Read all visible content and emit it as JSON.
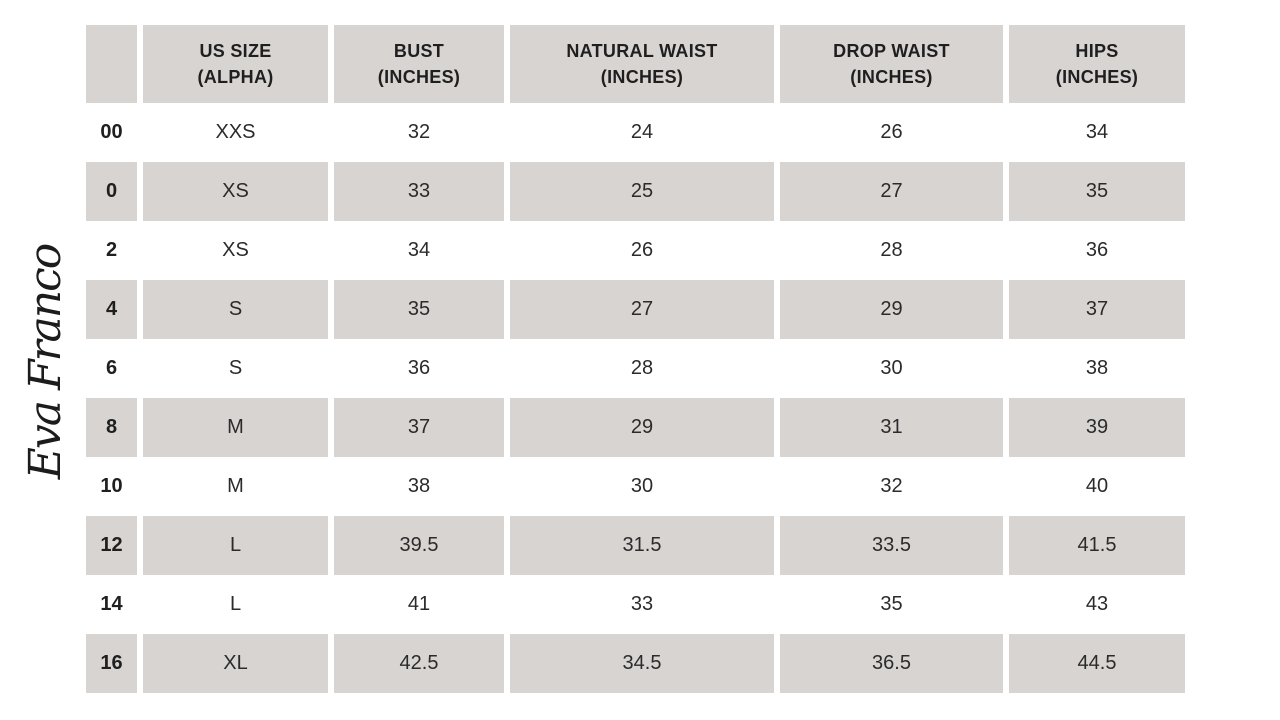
{
  "brand": {
    "logo_text": "Eva Franco"
  },
  "colors": {
    "page_bg": "#ffffff",
    "header_bg": "#d8d4d2",
    "shaded_row_bg": "#d8d4d2",
    "text": "#2b2b2b"
  },
  "chart_data": {
    "type": "table",
    "columns": [
      "",
      "US SIZE\n(ALPHA)",
      "BUST\n(INCHES)",
      "NATURAL WAIST\n(INCHES)",
      "DROP WAIST\n(INCHES)",
      "HIPS\n(INCHES)"
    ],
    "rows": [
      [
        "00",
        "XXS",
        "32",
        "24",
        "26",
        "34"
      ],
      [
        "0",
        "XS",
        "33",
        "25",
        "27",
        "35"
      ],
      [
        "2",
        "XS",
        "34",
        "26",
        "28",
        "36"
      ],
      [
        "4",
        "S",
        "35",
        "27",
        "29",
        "37"
      ],
      [
        "6",
        "S",
        "36",
        "28",
        "30",
        "38"
      ],
      [
        "8",
        "M",
        "37",
        "29",
        "31",
        "39"
      ],
      [
        "10",
        "M",
        "38",
        "30",
        "32",
        "40"
      ],
      [
        "12",
        "L",
        "39.5",
        "31.5",
        "33.5",
        "41.5"
      ],
      [
        "14",
        "L",
        "41",
        "33",
        "35",
        "43"
      ],
      [
        "16",
        "XL",
        "42.5",
        "34.5",
        "36.5",
        "44.5"
      ]
    ]
  }
}
